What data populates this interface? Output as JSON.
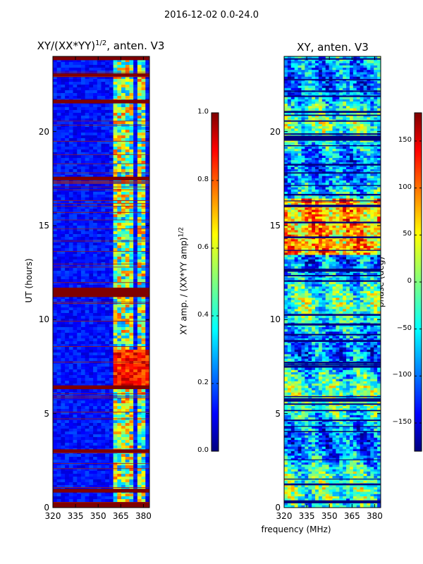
{
  "suptitle": "2016-12-02 0.0-24.0",
  "xlabel": "frequency (MHz)",
  "chart_data": [
    {
      "type": "heatmap",
      "title_main": "XY/(XX*YY)",
      "title_sup": "1/2",
      "title_rest": ", anten. V3",
      "xlabel": "",
      "ylabel": "UT (hours)",
      "xlim": [
        320,
        384
      ],
      "ylim": [
        0,
        24
      ],
      "xticks": [
        320,
        335,
        350,
        365,
        380
      ],
      "yticks": [
        0,
        5,
        10,
        15,
        20
      ],
      "colorbar": {
        "label_main": "XY amp. / (XX*YY amp)",
        "label_sup": "1/2",
        "range": [
          0.0,
          1.0
        ],
        "ticks": [
          "0.0",
          "0.2",
          "0.4",
          "0.6",
          "0.8",
          "1.0"
        ],
        "tick_values": [
          0.0,
          0.2,
          0.4,
          0.6,
          0.8,
          1.0
        ]
      },
      "flagged_bands_hours": [
        [
          0.0,
          0.3
        ],
        [
          0.8,
          1.0
        ],
        [
          2.9,
          3.1
        ],
        [
          6.3,
          6.5
        ],
        [
          11.2,
          11.7
        ],
        [
          17.4,
          17.6
        ],
        [
          21.5,
          21.7
        ],
        [
          22.9,
          23.1
        ],
        [
          23.8,
          24.0
        ]
      ],
      "band_rfi_mhz": [
        [
          361,
          367
        ],
        [
          369,
          374
        ],
        [
          376,
          382
        ]
      ]
    },
    {
      "type": "heatmap",
      "title": "XY, anten. V3",
      "xlabel": "",
      "ylabel": "",
      "xlim": [
        320,
        384
      ],
      "ylim": [
        0,
        24
      ],
      "xticks": [
        320,
        335,
        350,
        365,
        380
      ],
      "yticks": [
        0,
        5,
        10,
        15,
        20
      ],
      "colorbar": {
        "label": "phase (deg)",
        "range": [
          -180,
          180
        ],
        "ticks": [
          "−150",
          "−100",
          "−50",
          "0",
          "50",
          "100",
          "150"
        ],
        "tick_values": [
          -150,
          -100,
          -50,
          0,
          50,
          100,
          150
        ]
      }
    }
  ],
  "colors": {
    "jet_low": "#00007f",
    "jet_high": "#7f0000"
  }
}
